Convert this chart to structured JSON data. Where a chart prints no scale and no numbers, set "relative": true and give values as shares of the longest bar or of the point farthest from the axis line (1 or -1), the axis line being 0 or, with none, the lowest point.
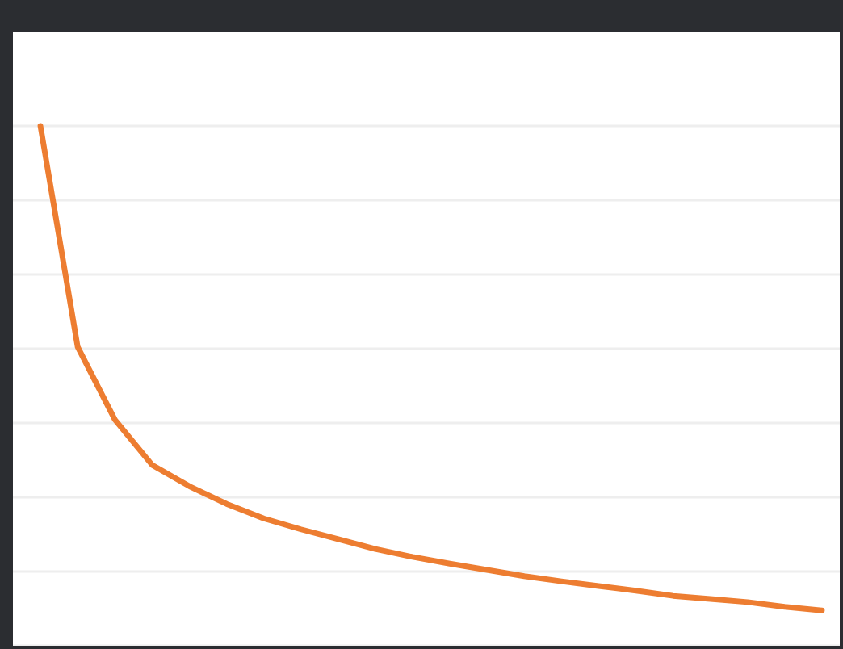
{
  "chart_data": {
    "type": "line",
    "relative": true,
    "grid": "y",
    "categories": [
      null,
      null,
      null,
      null,
      null,
      null,
      null,
      null,
      null,
      null,
      null,
      null,
      null,
      null,
      null,
      null,
      null,
      null,
      null,
      null,
      null,
      null
    ],
    "series": [
      {
        "color": "#ed7d31",
        "values": [
          1,
          0.575,
          0.435,
          0.348,
          0.307,
          0.273,
          0.245,
          0.224,
          0.205,
          0.186,
          0.171,
          0.158,
          0.146,
          0.134,
          0.124,
          0.115,
          0.106,
          0.096,
          0.09,
          0.084,
          0.075,
          0.068
        ]
      }
    ]
  }
}
